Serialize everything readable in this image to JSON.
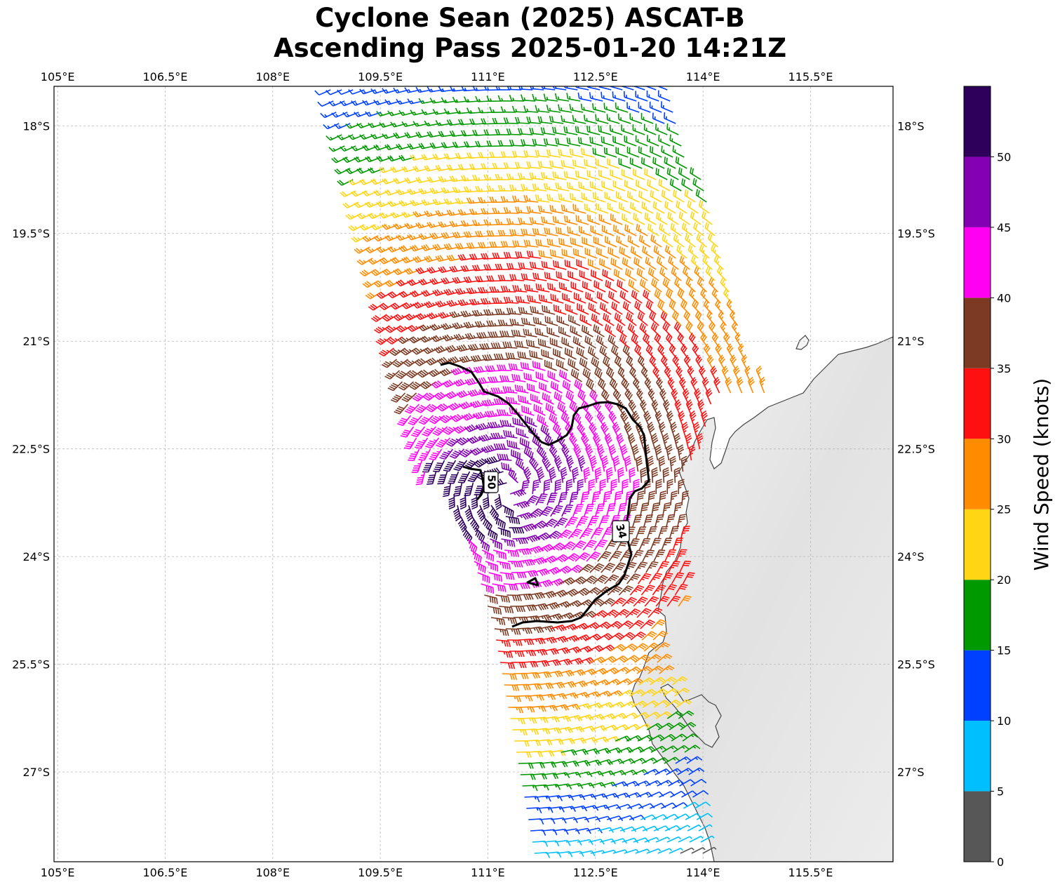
{
  "title": {
    "line1": "Cyclone Sean (2025) ASCAT-B",
    "line2": "Ascending Pass 2025-01-20 14:21Z"
  },
  "map": {
    "lon_range": [
      104.95,
      116.65
    ],
    "lat_range": [
      -28.25,
      -17.45
    ],
    "lon_ticks": [
      {
        "value": 105.0,
        "label": "105°E"
      },
      {
        "value": 106.5,
        "label": "106.5°E"
      },
      {
        "value": 108.0,
        "label": "108°E"
      },
      {
        "value": 109.5,
        "label": "109.5°E"
      },
      {
        "value": 111.0,
        "label": "111°E"
      },
      {
        "value": 112.5,
        "label": "112.5°E"
      },
      {
        "value": 114.0,
        "label": "114°E"
      },
      {
        "value": 115.5,
        "label": "115.5°E"
      }
    ],
    "lat_ticks": [
      {
        "value": -18.0,
        "label": "18°S"
      },
      {
        "value": -19.5,
        "label": "19.5°S"
      },
      {
        "value": -21.0,
        "label": "21°S"
      },
      {
        "value": -22.5,
        "label": "22.5°S"
      },
      {
        "value": -24.0,
        "label": "24°S"
      },
      {
        "value": -25.5,
        "label": "25.5°S"
      },
      {
        "value": -27.0,
        "label": "27°S"
      }
    ],
    "gridlines": true,
    "land_color": "#e8e8e8",
    "coastline_color": "#444444"
  },
  "wind": {
    "center": {
      "lon": 111.3,
      "lat": -23.1
    },
    "swath_edge_color": "#000000"
  },
  "contours": [
    {
      "level": 34,
      "label": "34"
    },
    {
      "level": 50,
      "label": "50"
    }
  ],
  "colorbar": {
    "label": "Wind Speed (knots)",
    "bounds": [
      0,
      5,
      10,
      15,
      20,
      25,
      30,
      35,
      40,
      45,
      50,
      55
    ],
    "tick_values": [
      0,
      5,
      10,
      15,
      20,
      25,
      30,
      35,
      40,
      45,
      50
    ],
    "colors": [
      "#575757",
      "#00bfff",
      "#0040ff",
      "#009900",
      "#ffd514",
      "#ff8c00",
      "#ff1010",
      "#7d3a22",
      "#ff00f2",
      "#8400b3",
      "#2e005c"
    ]
  }
}
